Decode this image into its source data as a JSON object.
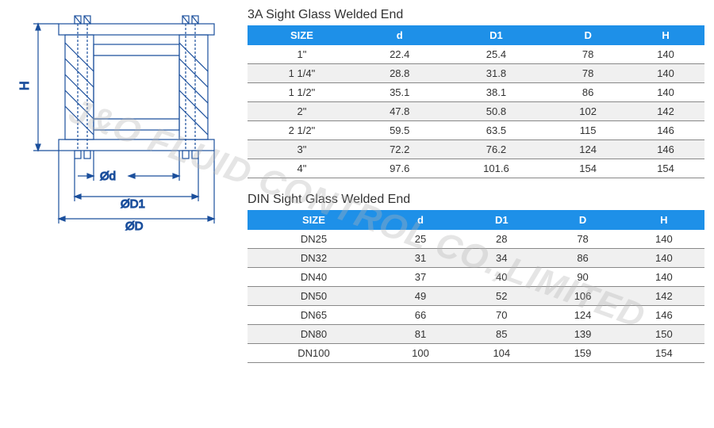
{
  "watermark": "J&O FLUID CONTROL CO.,LIMITED",
  "diagram": {
    "stroke": "#1b4f9c",
    "stroke_width": 1.2,
    "labels": {
      "H": "H",
      "d": "Ød",
      "D1": "ØD1",
      "D": "ØD"
    }
  },
  "tables": [
    {
      "title": "3A Sight Glass Welded End",
      "header_bg": "#1e90e8",
      "header_fg": "#ffffff",
      "row_border": "#888888",
      "zebra_bg": "#f0f0f0",
      "columns": [
        "SIZE",
        "d",
        "D1",
        "D",
        "H"
      ],
      "rows": [
        [
          "1\"",
          "22.4",
          "25.4",
          "78",
          "140"
        ],
        [
          "1 1/4\"",
          "28.8",
          "31.8",
          "78",
          "140"
        ],
        [
          "1 1/2\"",
          "35.1",
          "38.1",
          "86",
          "140"
        ],
        [
          "2\"",
          "47.8",
          "50.8",
          "102",
          "142"
        ],
        [
          "2 1/2\"",
          "59.5",
          "63.5",
          "115",
          "146"
        ],
        [
          "3\"",
          "72.2",
          "76.2",
          "124",
          "146"
        ],
        [
          "4\"",
          "97.6",
          "101.6",
          "154",
          "154"
        ]
      ]
    },
    {
      "title": "DIN Sight Glass Welded End",
      "header_bg": "#1e90e8",
      "header_fg": "#ffffff",
      "row_border": "#888888",
      "zebra_bg": "#f0f0f0",
      "columns": [
        "SIZE",
        "d",
        "D1",
        "D",
        "H"
      ],
      "rows": [
        [
          "DN25",
          "25",
          "28",
          "78",
          "140"
        ],
        [
          "DN32",
          "31",
          "34",
          "86",
          "140"
        ],
        [
          "DN40",
          "37",
          "40",
          "90",
          "140"
        ],
        [
          "DN50",
          "49",
          "52",
          "106",
          "142"
        ],
        [
          "DN65",
          "66",
          "70",
          "124",
          "146"
        ],
        [
          "DN80",
          "81",
          "85",
          "139",
          "150"
        ],
        [
          "DN100",
          "100",
          "104",
          "159",
          "154"
        ]
      ]
    }
  ]
}
